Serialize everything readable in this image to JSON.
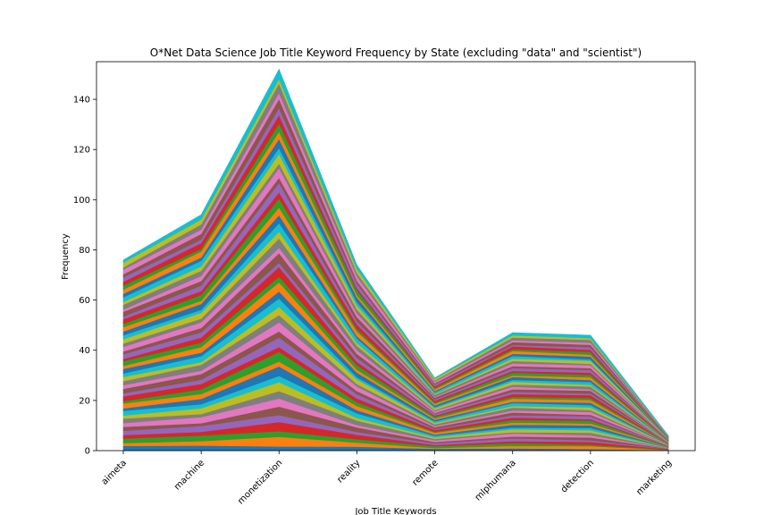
{
  "chart_data": {
    "type": "area",
    "stacked": true,
    "title": "O*Net Data Science Job Title Keyword Frequency by State (excluding \"data\" and \"scientist\")",
    "xlabel": "Job Title Keywords",
    "ylabel": "Frequency",
    "categories": [
      "aimeta",
      "machine",
      "monetization",
      "reality",
      "remote",
      "mlphumana",
      "detection",
      "marketing"
    ],
    "ylim": [
      0,
      155
    ],
    "yticks": [
      0,
      20,
      40,
      60,
      80,
      100,
      120,
      140
    ],
    "totals": [
      76,
      94,
      152,
      74,
      29,
      47,
      46,
      6
    ],
    "series_count": 50,
    "grid": false,
    "legend": "none",
    "palette": [
      "#1f77b4",
      "#ff7f0e",
      "#2ca02c",
      "#d62728",
      "#9467bd",
      "#8c564b",
      "#e377c2",
      "#7f7f7f",
      "#bcbd22",
      "#17becf"
    ]
  }
}
